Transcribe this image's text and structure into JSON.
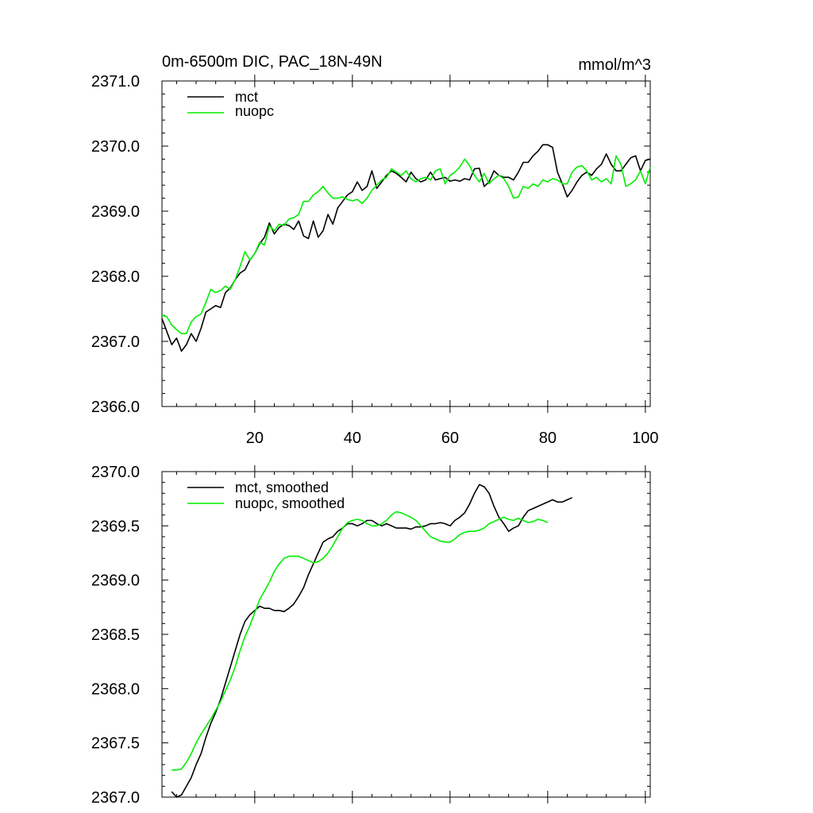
{
  "chart_data": [
    {
      "type": "line",
      "title": "0m-6500m DIC, PAC_18N-49N",
      "units": "mmol/m^3",
      "xlabel": "",
      "ylabel": "",
      "xlim": [
        1,
        101
      ],
      "ylim": [
        2366.0,
        2371.0
      ],
      "xticks": [
        20,
        40,
        60,
        80,
        100
      ],
      "yticks": [
        2366.0,
        2367.0,
        2368.0,
        2369.0,
        2370.0,
        2371.0
      ],
      "ytick_labels": [
        "2366.0",
        "2367.0",
        "2368.0",
        "2369.0",
        "2370.0",
        "2371.0"
      ],
      "legend_position": "top-left",
      "series": [
        {
          "name": "mct",
          "color": "#000000",
          "x_start": 1,
          "values": [
            2367.35,
            2367.15,
            2366.95,
            2367.05,
            2366.85,
            2366.95,
            2367.12,
            2367.0,
            2367.2,
            2367.45,
            2367.5,
            2367.55,
            2367.52,
            2367.75,
            2367.82,
            2367.95,
            2368.05,
            2368.1,
            2368.25,
            2368.35,
            2368.5,
            2368.6,
            2368.82,
            2368.65,
            2368.75,
            2368.8,
            2368.78,
            2368.72,
            2368.85,
            2368.62,
            2368.58,
            2368.85,
            2368.6,
            2368.7,
            2368.95,
            2368.8,
            2369.05,
            2369.15,
            2369.25,
            2369.3,
            2369.45,
            2369.32,
            2369.38,
            2369.62,
            2369.35,
            2369.45,
            2369.55,
            2369.62,
            2369.58,
            2369.52,
            2369.45,
            2369.6,
            2369.5,
            2369.45,
            2369.48,
            2369.6,
            2369.48,
            2369.5,
            2369.52,
            2369.46,
            2369.48,
            2369.46,
            2369.5,
            2369.48,
            2369.65,
            2369.66,
            2369.38,
            2369.45,
            2369.62,
            2369.55,
            2369.52,
            2369.52,
            2369.48,
            2369.6,
            2369.75,
            2369.75,
            2369.85,
            2369.92,
            2370.02,
            2370.02,
            2369.98,
            2369.6,
            2369.42,
            2369.22,
            2369.32,
            2369.45,
            2369.55,
            2369.6,
            2369.55,
            2369.65,
            2369.72,
            2369.88,
            2369.72,
            2369.62,
            2369.62,
            2369.72,
            2369.82,
            2369.85,
            2369.62,
            2369.78,
            2369.8
          ]
        },
        {
          "name": "nuopc",
          "color": "#00ee00",
          "x_start": 1,
          "values": [
            2367.4,
            2367.38,
            2367.25,
            2367.18,
            2367.12,
            2367.12,
            2367.3,
            2367.38,
            2367.42,
            2367.6,
            2367.8,
            2367.75,
            2367.78,
            2367.85,
            2367.8,
            2367.95,
            2368.15,
            2368.38,
            2368.25,
            2368.35,
            2368.52,
            2368.48,
            2368.78,
            2368.7,
            2368.8,
            2368.78,
            2368.88,
            2368.9,
            2368.95,
            2369.15,
            2369.15,
            2369.25,
            2369.3,
            2369.38,
            2369.28,
            2369.2,
            2369.2,
            2369.22,
            2369.18,
            2369.16,
            2369.18,
            2369.12,
            2369.2,
            2369.32,
            2369.4,
            2369.48,
            2369.52,
            2369.65,
            2369.6,
            2369.55,
            2369.62,
            2369.5,
            2369.45,
            2369.5,
            2369.52,
            2369.48,
            2369.62,
            2369.65,
            2369.42,
            2369.55,
            2369.6,
            2369.68,
            2369.8,
            2369.7,
            2369.55,
            2369.45,
            2369.58,
            2369.42,
            2369.5,
            2369.55,
            2369.5,
            2369.38,
            2369.2,
            2369.22,
            2369.38,
            2369.35,
            2369.42,
            2369.38,
            2369.48,
            2369.45,
            2369.5,
            2369.48,
            2369.42,
            2369.42,
            2369.6,
            2369.68,
            2369.7,
            2369.62,
            2369.48,
            2369.52,
            2369.45,
            2369.5,
            2369.42,
            2369.85,
            2369.72,
            2369.38,
            2369.42,
            2369.48,
            2369.62,
            2369.42,
            2369.68
          ]
        }
      ]
    },
    {
      "type": "line",
      "title": "",
      "xlabel": "",
      "ylabel": "",
      "xlim": [
        1,
        101
      ],
      "ylim": [
        2367.0,
        2370.0
      ],
      "xticks": [
        20,
        40,
        60,
        80,
        100
      ],
      "yticks": [
        2367.0,
        2367.5,
        2368.0,
        2368.5,
        2369.0,
        2369.5,
        2370.0
      ],
      "ytick_labels": [
        "2367.0",
        "2367.5",
        "2368.0",
        "2368.5",
        "2369.0",
        "2369.5",
        "2370.0"
      ],
      "legend_position": "top-left",
      "series": [
        {
          "name": "mct, smoothed",
          "color": "#000000",
          "x_start": 3,
          "values": [
            2367.05,
            2367.0,
            2367.02,
            2367.1,
            2367.18,
            2367.3,
            2367.4,
            2367.55,
            2367.68,
            2367.78,
            2367.9,
            2368.05,
            2368.2,
            2368.35,
            2368.5,
            2368.62,
            2368.68,
            2368.72,
            2368.76,
            2368.74,
            2368.74,
            2368.72,
            2368.72,
            2368.71,
            2368.74,
            2368.78,
            2368.85,
            2368.93,
            2369.05,
            2369.15,
            2369.25,
            2369.35,
            2369.38,
            2369.4,
            2369.45,
            2369.48,
            2369.52,
            2369.52,
            2369.5,
            2369.52,
            2369.55,
            2369.55,
            2369.52,
            2369.5,
            2369.52,
            2369.5,
            2369.48,
            2369.48,
            2369.48,
            2369.47,
            2369.49,
            2369.49,
            2369.5,
            2369.52,
            2369.52,
            2369.53,
            2369.52,
            2369.5,
            2369.55,
            2369.58,
            2369.62,
            2369.7,
            2369.8,
            2369.88,
            2369.86,
            2369.8,
            2369.68,
            2369.58,
            2369.52,
            2369.45,
            2369.48,
            2369.5,
            2369.58,
            2369.64,
            2369.66,
            2369.68,
            2369.7,
            2369.72,
            2369.74,
            2369.72,
            2369.72,
            2369.74,
            2369.76
          ]
        },
        {
          "name": "nuopc, smoothed",
          "color": "#00ee00",
          "x_start": 3,
          "values": [
            2367.25,
            2367.25,
            2367.26,
            2367.32,
            2367.4,
            2367.5,
            2367.58,
            2367.65,
            2367.72,
            2367.8,
            2367.88,
            2367.98,
            2368.08,
            2368.2,
            2368.35,
            2368.48,
            2368.58,
            2368.7,
            2368.82,
            2368.9,
            2368.98,
            2369.08,
            2369.15,
            2369.2,
            2369.22,
            2369.22,
            2369.22,
            2369.2,
            2369.18,
            2369.16,
            2369.17,
            2369.2,
            2369.25,
            2369.32,
            2369.4,
            2369.48,
            2369.53,
            2369.55,
            2369.56,
            2369.55,
            2369.52,
            2369.5,
            2369.5,
            2369.52,
            2369.55,
            2369.6,
            2369.63,
            2369.62,
            2369.6,
            2369.58,
            2369.55,
            2369.5,
            2369.45,
            2369.4,
            2369.38,
            2369.36,
            2369.35,
            2369.35,
            2369.38,
            2369.42,
            2369.44,
            2369.45,
            2369.45,
            2369.46,
            2369.48,
            2369.52,
            2369.54,
            2369.56,
            2369.58,
            2369.56,
            2369.55,
            2369.57,
            2369.55,
            2369.53,
            2369.54,
            2369.56,
            2369.55,
            2369.53
          ]
        }
      ]
    }
  ]
}
